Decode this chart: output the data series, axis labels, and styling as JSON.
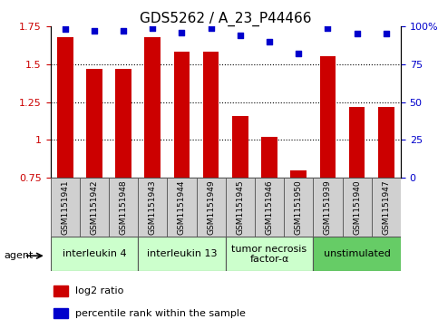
{
  "title": "GDS5262 / A_23_P44466",
  "samples": [
    "GSM1151941",
    "GSM1151942",
    "GSM1151948",
    "GSM1151943",
    "GSM1151944",
    "GSM1151949",
    "GSM1151945",
    "GSM1151946",
    "GSM1151950",
    "GSM1151939",
    "GSM1151940",
    "GSM1151947"
  ],
  "log2_ratio": [
    1.68,
    1.47,
    1.47,
    1.68,
    1.58,
    1.58,
    1.16,
    1.02,
    0.8,
    1.55,
    1.22,
    1.22
  ],
  "percentile_rank": [
    98,
    97,
    97,
    99,
    96,
    99,
    94,
    90,
    82,
    99,
    95,
    95
  ],
  "bar_color": "#cc0000",
  "dot_color": "#0000cc",
  "ylim_left": [
    0.75,
    1.75
  ],
  "ylim_right": [
    0,
    100
  ],
  "yticks_left": [
    0.75,
    1.0,
    1.25,
    1.5,
    1.75
  ],
  "yticks_right": [
    0,
    25,
    50,
    75,
    100
  ],
  "ytick_labels_left": [
    "0.75",
    "1",
    "1.25",
    "1.5",
    "1.75"
  ],
  "ytick_labels_right": [
    "0",
    "25",
    "50",
    "75",
    "100%"
  ],
  "groups": [
    {
      "label": "interleukin 4",
      "start": 0,
      "end": 3,
      "color": "#ccffcc"
    },
    {
      "label": "interleukin 13",
      "start": 3,
      "end": 6,
      "color": "#ccffcc"
    },
    {
      "label": "tumor necrosis\nfactor-α",
      "start": 6,
      "end": 9,
      "color": "#ccffcc"
    },
    {
      "label": "unstimulated",
      "start": 9,
      "end": 12,
      "color": "#66cc66"
    }
  ],
  "agent_label": "agent",
  "legend_items": [
    {
      "label": "log2 ratio",
      "color": "#cc0000"
    },
    {
      "label": "percentile rank within the sample",
      "color": "#0000cc"
    }
  ],
  "background_color": "#ffffff",
  "sample_box_color": "#d0d0d0",
  "bar_baseline": 0.75,
  "title_fontsize": 11,
  "tick_fontsize": 8,
  "sample_fontsize": 6.5,
  "group_fontsize": 8,
  "legend_fontsize": 8
}
